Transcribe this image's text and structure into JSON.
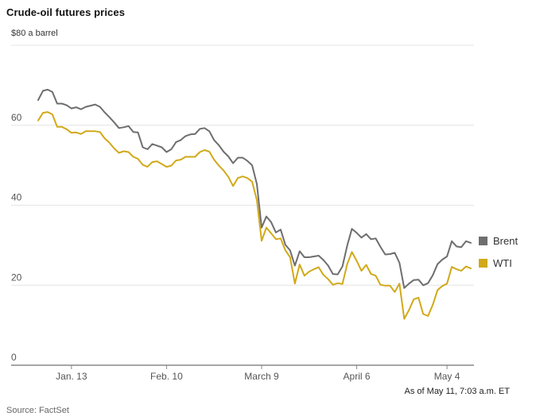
{
  "chart_data": {
    "type": "line",
    "title": "Crude-oil futures prices",
    "unit_label": "$80 a barrel",
    "as_of": "As of May 11, 7:03 a.m. ET",
    "source": "Source: FactSet",
    "ylim": [
      0,
      80
    ],
    "yticks": [
      0,
      20,
      40,
      60
    ],
    "grid": true,
    "legend_position": "right",
    "x_tick_labels": [
      "Jan. 13",
      "Feb. 10",
      "March 9",
      "April 6",
      "May 4"
    ],
    "x_tick_indices": [
      7,
      27,
      47,
      67,
      86
    ],
    "series": [
      {
        "name": "Brent",
        "color": "#6e6e6e",
        "values": [
          66.3,
          68.6,
          68.9,
          68.3,
          65.4,
          65.4,
          65.0,
          64.2,
          64.5,
          64.0,
          64.6,
          64.9,
          65.2,
          64.6,
          63.2,
          62.0,
          60.7,
          59.3,
          59.5,
          59.8,
          58.3,
          58.2,
          54.5,
          54.0,
          55.3,
          54.9,
          54.5,
          53.3,
          54.0,
          55.8,
          56.3,
          57.3,
          57.7,
          57.8,
          59.1,
          59.3,
          58.5,
          56.3,
          55.0,
          53.4,
          52.2,
          50.5,
          51.9,
          51.9,
          51.1,
          50.0,
          45.3,
          34.4,
          37.2,
          35.8,
          33.2,
          33.9,
          30.1,
          28.7,
          24.9,
          28.5,
          27.0,
          27.0,
          27.2,
          27.4,
          26.3,
          24.9,
          22.8,
          22.7,
          24.7,
          29.9,
          34.1,
          33.1,
          31.9,
          32.8,
          31.5,
          31.7,
          29.6,
          27.7,
          27.8,
          28.1,
          25.6,
          19.3,
          20.4,
          21.3,
          21.4,
          20.0,
          20.5,
          22.5,
          25.3,
          26.4,
          27.2,
          31.0,
          29.7,
          29.5,
          31.0,
          30.6
        ]
      },
      {
        "name": "WTI",
        "color": "#d1a919",
        "values": [
          61.2,
          63.1,
          63.3,
          62.7,
          59.6,
          59.6,
          59.0,
          58.1,
          58.2,
          57.8,
          58.5,
          58.5,
          58.5,
          58.3,
          56.7,
          55.6,
          54.2,
          53.1,
          53.5,
          53.3,
          52.1,
          51.6,
          50.1,
          49.6,
          50.8,
          51.0,
          50.3,
          49.6,
          49.9,
          51.2,
          51.4,
          52.1,
          52.1,
          52.1,
          53.3,
          53.8,
          53.4,
          51.4,
          49.9,
          48.7,
          47.1,
          44.8,
          46.8,
          47.2,
          46.8,
          45.9,
          41.3,
          31.1,
          34.4,
          33.0,
          31.5,
          31.7,
          28.7,
          27.0,
          20.4,
          25.2,
          22.4,
          23.4,
          24.0,
          24.5,
          22.6,
          21.5,
          20.1,
          20.5,
          20.3,
          25.3,
          28.3,
          26.1,
          23.6,
          25.1,
          22.8,
          22.4,
          20.1,
          19.9,
          19.9,
          18.3,
          20.4,
          11.6,
          13.8,
          16.5,
          16.9,
          12.8,
          12.3,
          15.1,
          18.8,
          19.8,
          20.4,
          24.6,
          24.0,
          23.6,
          24.7,
          24.2
        ]
      }
    ]
  }
}
